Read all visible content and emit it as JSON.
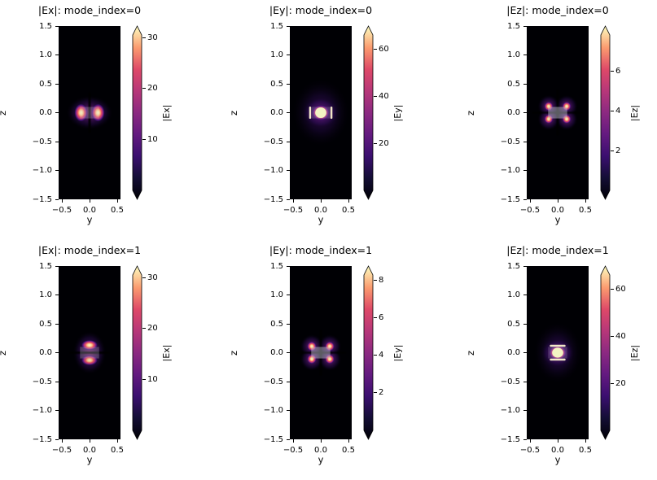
{
  "figure": {
    "background": "#ffffff",
    "colormap": "magma",
    "description": "Electric field magnitude mode profiles of a waveguide cross-section for two mode indices"
  },
  "overlay": {
    "name": "waveguide-outline",
    "half_width": 0.17,
    "half_height": 0.1,
    "fill": "rgba(205,205,215,0.25)"
  },
  "chart_data": [
    {
      "type": "heatmap",
      "title": "|Ex|: mode_index=0",
      "xlabel": "y",
      "ylabel": "z",
      "xlim": [
        -0.55,
        0.55
      ],
      "ylim": [
        -1.5,
        1.5
      ],
      "xtick_labels": [
        "−0.5",
        "0.0",
        "0.5"
      ],
      "ytick_labels": [
        "1.5",
        "1.0",
        "0.5",
        "0.0",
        "−0.5",
        "−1.0",
        "−1.5"
      ],
      "colorbar": {
        "label": "|Ex|",
        "ticks": [
          10,
          20,
          30
        ],
        "vmin": 0,
        "vmax": 30.5,
        "extend": "both"
      },
      "pattern": {
        "kind": "pair-horizontal",
        "description": "two bright lobes at y=±0.15, z=0 split by dark vertical nodal line at y=0",
        "lobes": [
          {
            "y": -0.15,
            "z": 0
          },
          {
            "y": 0.15,
            "z": 0
          }
        ],
        "core": {
          "rx": 0.12,
          "rz": 0.155
        },
        "halo": {
          "rx": 0.42,
          "rz": 0.3
        }
      }
    },
    {
      "type": "heatmap",
      "title": "|Ey|: mode_index=0",
      "xlabel": "y",
      "ylabel": "z",
      "xlim": [
        -0.55,
        0.55
      ],
      "ylim": [
        -1.5,
        1.5
      ],
      "xtick_labels": [
        "−0.5",
        "0.0",
        "0.5"
      ],
      "ytick_labels": [
        "1.5",
        "1.0",
        "0.5",
        "0.0",
        "−0.5",
        "−1.0",
        "−1.5"
      ],
      "colorbar": {
        "label": "|Ey|",
        "ticks": [
          20,
          40,
          60
        ],
        "vmin": 0,
        "vmax": 66,
        "extend": "both"
      },
      "pattern": {
        "kind": "center-vstripes",
        "description": "single bright central lobe with bright vertical slivers at waveguide sidewalls y=±0.19",
        "core": {
          "rx": 0.16,
          "rz": 0.14
        },
        "mid": {
          "rx": 0.33,
          "rz": 0.28
        },
        "halo": {
          "rx": 0.52,
          "rz": 0.6
        },
        "stripes": {
          "offset": 0.19,
          "w": 0.035,
          "h": 0.21
        }
      }
    },
    {
      "type": "heatmap",
      "title": "|Ez|: mode_index=0",
      "xlabel": "y",
      "ylabel": "z",
      "xlim": [
        -0.55,
        0.55
      ],
      "ylim": [
        -1.5,
        1.5
      ],
      "xtick_labels": [
        "−0.5",
        "0.0",
        "0.5"
      ],
      "ytick_labels": [
        "1.5",
        "1.0",
        "0.5",
        "0.0",
        "−0.5",
        "−1.0",
        "−1.5"
      ],
      "colorbar": {
        "label": "|Ez|",
        "ticks": [
          2,
          4,
          6
        ],
        "vmin": 0,
        "vmax": 7.8,
        "extend": "both"
      },
      "pattern": {
        "kind": "quad",
        "description": "four lobes at waveguide corners (y,z)=(±0.16,±0.11) with dark nodal cross through center",
        "lobes": [
          {
            "y": -0.16,
            "z": 0.11
          },
          {
            "y": 0.16,
            "z": 0.11
          },
          {
            "y": -0.16,
            "z": -0.11
          },
          {
            "y": 0.16,
            "z": -0.11
          }
        ],
        "core_r": 0.08,
        "halo_r": 0.2
      }
    },
    {
      "type": "heatmap",
      "title": "|Ex|: mode_index=1",
      "xlabel": "y",
      "ylabel": "z",
      "xlim": [
        -0.55,
        0.55
      ],
      "ylim": [
        -1.5,
        1.5
      ],
      "xtick_labels": [
        "−0.5",
        "0.0",
        "0.5"
      ],
      "ytick_labels": [
        "1.5",
        "1.0",
        "0.5",
        "0.0",
        "−0.5",
        "−1.0",
        "−1.5"
      ],
      "colorbar": {
        "label": "|Ex|",
        "ticks": [
          10,
          20,
          30
        ],
        "vmin": 0,
        "vmax": 30.5,
        "extend": "both"
      },
      "pattern": {
        "kind": "pair-vertical",
        "description": "two bright lobes stacked at z=±0.13, y=0 split by dark horizontal nodal line at z=0",
        "lobes": [
          {
            "y": 0,
            "z": 0.13
          },
          {
            "y": 0,
            "z": -0.13
          }
        ],
        "core": {
          "rx": 0.145,
          "rz": 0.09
        },
        "halo": {
          "rx": 0.3,
          "rz": 0.38
        }
      }
    },
    {
      "type": "heatmap",
      "title": "|Ey|: mode_index=1",
      "xlabel": "y",
      "ylabel": "z",
      "xlim": [
        -0.55,
        0.55
      ],
      "ylim": [
        -1.5,
        1.5
      ],
      "xtick_labels": [
        "−0.5",
        "0.0",
        "0.5"
      ],
      "ytick_labels": [
        "1.5",
        "1.0",
        "0.5",
        "0.0",
        "−0.5",
        "−1.0",
        "−1.5"
      ],
      "colorbar": {
        "label": "|Ey|",
        "ticks": [
          2,
          4,
          6,
          8
        ],
        "vmin": 0,
        "vmax": 8.3,
        "extend": "both"
      },
      "pattern": {
        "kind": "quad",
        "description": "four lobes at waveguide corners (y,z)=(±0.16,±0.11) with dark nodal cross through center",
        "lobes": [
          {
            "y": -0.16,
            "z": 0.11
          },
          {
            "y": 0.16,
            "z": 0.11
          },
          {
            "y": -0.16,
            "z": -0.11
          },
          {
            "y": 0.16,
            "z": -0.11
          }
        ],
        "core_r": 0.085,
        "halo_r": 0.21
      }
    },
    {
      "type": "heatmap",
      "title": "|Ez|: mode_index=1",
      "xlabel": "y",
      "ylabel": "z",
      "xlim": [
        -0.55,
        0.55
      ],
      "ylim": [
        -1.5,
        1.5
      ],
      "xtick_labels": [
        "−0.5",
        "0.0",
        "0.5"
      ],
      "ytick_labels": [
        "1.5",
        "1.0",
        "0.5",
        "0.0",
        "−0.5",
        "−1.0",
        "−1.5"
      ],
      "colorbar": {
        "label": "|Ez|",
        "ticks": [
          20,
          40,
          60
        ],
        "vmin": 0,
        "vmax": 66,
        "extend": "both"
      },
      "pattern": {
        "kind": "center-hstripes",
        "description": "single bright central lobe with bright horizontal slivers at waveguide top/bottom walls z=±0.12",
        "core": {
          "rx": 0.16,
          "rz": 0.13
        },
        "mid": {
          "rx": 0.3,
          "rz": 0.26
        },
        "halo": {
          "rx": 0.44,
          "rz": 0.54
        },
        "stripes": {
          "offset": 0.12,
          "w": 0.28,
          "h": 0.035
        }
      }
    }
  ]
}
